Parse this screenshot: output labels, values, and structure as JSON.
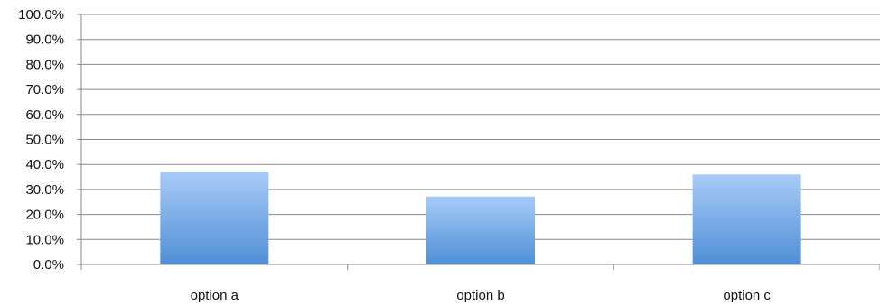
{
  "chart_data": {
    "type": "bar",
    "categories": [
      "option a",
      "option b",
      "option c"
    ],
    "values": [
      37.0,
      27.2,
      36.0
    ],
    "ylim": [
      0,
      100
    ],
    "yticks": [
      "0.0%",
      "10.0%",
      "20.0%",
      "30.0%",
      "40.0%",
      "50.0%",
      "60.0%",
      "70.0%",
      "80.0%",
      "90.0%",
      "100.0%"
    ],
    "grid": true,
    "legend": "none",
    "colors": {
      "bar_top": "#a8cbf7",
      "bar_bottom": "#4f8fd6",
      "grid": "#8a8a8a",
      "axis": "#8a8a8a"
    }
  }
}
